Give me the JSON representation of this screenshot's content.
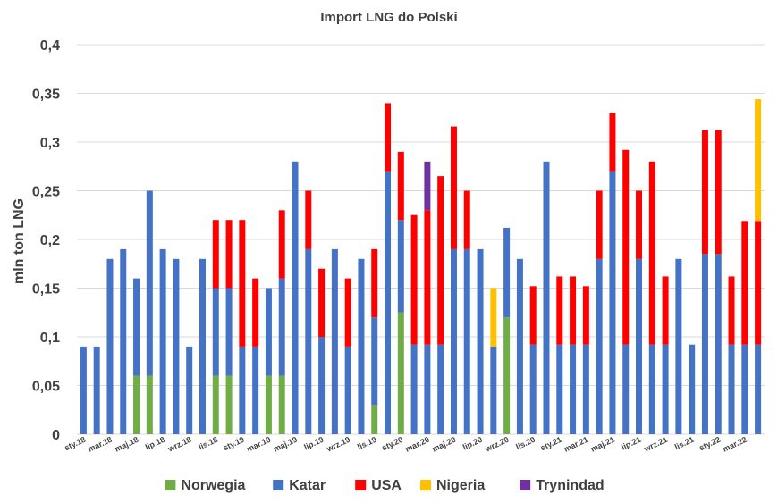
{
  "chart_data": {
    "type": "bar",
    "stacked": true,
    "title": "Import LNG do Polski",
    "ylabel": "mln ton LNG",
    "xlabel": "",
    "ylim": [
      0,
      0.4
    ],
    "yticks": [
      "0",
      "0,05",
      "0,1",
      "0,15",
      "0,2",
      "0,25",
      "0,3",
      "0,35",
      "0,4"
    ],
    "ytick_values": [
      0,
      0.05,
      0.1,
      0.15,
      0.2,
      0.25,
      0.3,
      0.35,
      0.4
    ],
    "grid": true,
    "legend_position": "bottom",
    "x_tick_labels": [
      {
        "index": 0,
        "label": "sty.18"
      },
      {
        "index": 2,
        "label": "mar.18"
      },
      {
        "index": 4,
        "label": "maj.18"
      },
      {
        "index": 6,
        "label": "lip.18"
      },
      {
        "index": 8,
        "label": "wrz.18"
      },
      {
        "index": 10,
        "label": "lis.18"
      },
      {
        "index": 12,
        "label": "sty.19"
      },
      {
        "index": 14,
        "label": "mar.19"
      },
      {
        "index": 16,
        "label": "maj.19"
      },
      {
        "index": 18,
        "label": "lip.19"
      },
      {
        "index": 20,
        "label": "wrz.19"
      },
      {
        "index": 22,
        "label": "lis.19"
      },
      {
        "index": 24,
        "label": "sty.20"
      },
      {
        "index": 26,
        "label": "mar.20"
      },
      {
        "index": 28,
        "label": "maj.20"
      },
      {
        "index": 30,
        "label": "lip.20"
      },
      {
        "index": 32,
        "label": "wrz.20"
      },
      {
        "index": 34,
        "label": "lis.20"
      },
      {
        "index": 36,
        "label": "sty.21"
      },
      {
        "index": 38,
        "label": "mar.21"
      },
      {
        "index": 40,
        "label": "maj.21"
      },
      {
        "index": 42,
        "label": "lip.21"
      },
      {
        "index": 44,
        "label": "wrz.21"
      },
      {
        "index": 46,
        "label": "lis.21"
      },
      {
        "index": 48,
        "label": "sty.22"
      },
      {
        "index": 50,
        "label": "mar.22"
      }
    ],
    "series": [
      {
        "name": "Norwegia",
        "color": "#70ad47",
        "values": [
          0,
          0,
          0,
          0,
          0.06,
          0.06,
          0,
          0,
          0,
          0,
          0.06,
          0.06,
          0,
          0,
          0.06,
          0.06,
          0,
          0,
          0,
          0,
          0,
          0,
          0.03,
          0,
          0.125,
          0,
          0,
          0,
          0,
          0,
          0,
          0,
          0.12,
          0,
          0,
          0,
          0,
          0,
          0,
          0,
          0,
          0,
          0,
          0,
          0,
          0,
          0,
          0,
          0,
          0,
          0,
          0
        ]
      },
      {
        "name": "Katar",
        "color": "#4472c4",
        "values": [
          0.09,
          0.09,
          0.18,
          0.19,
          0.1,
          0.19,
          0.19,
          0.18,
          0.09,
          0.18,
          0.09,
          0.09,
          0.09,
          0.09,
          0.09,
          0.1,
          0.28,
          0.19,
          0.1,
          0.19,
          0.09,
          0.18,
          0.09,
          0.27,
          0.095,
          0.092,
          0.092,
          0.092,
          0.19,
          0.19,
          0.19,
          0.09,
          0.092,
          0.18,
          0.092,
          0.28,
          0.092,
          0.092,
          0.092,
          0.18,
          0.27,
          0.092,
          0.18,
          0.092,
          0.092,
          0.18,
          0.092,
          0.185,
          0.185,
          0.092,
          0.092,
          0.092
        ]
      },
      {
        "name": "USA",
        "color": "#ff0000",
        "values": [
          0,
          0,
          0,
          0,
          0,
          0,
          0,
          0,
          0,
          0,
          0.07,
          0.07,
          0.13,
          0.07,
          0,
          0.07,
          0,
          0.06,
          0.07,
          0,
          0.07,
          0,
          0.07,
          0.07,
          0.07,
          0.133,
          0.138,
          0.173,
          0.126,
          0.06,
          0,
          0,
          0,
          0,
          0.06,
          0,
          0.07,
          0.07,
          0.06,
          0.07,
          0.06,
          0.2,
          0.07,
          0.188,
          0.07,
          0,
          0,
          0.127,
          0.127,
          0.07,
          0.127,
          0.127
        ]
      },
      {
        "name": "Nigeria",
        "color": "#ffc000",
        "values": [
          0,
          0,
          0,
          0,
          0,
          0,
          0,
          0,
          0,
          0,
          0,
          0,
          0,
          0,
          0,
          0,
          0,
          0,
          0,
          0,
          0,
          0,
          0,
          0,
          0,
          0,
          0,
          0,
          0,
          0,
          0,
          0.06,
          0,
          0,
          0,
          0,
          0,
          0,
          0,
          0,
          0,
          0,
          0,
          0,
          0,
          0,
          0,
          0,
          0,
          0,
          0,
          0.125
        ]
      },
      {
        "name": "Trynindad",
        "color": "#7030a0",
        "values": [
          0,
          0,
          0,
          0,
          0,
          0,
          0,
          0,
          0,
          0,
          0,
          0,
          0,
          0,
          0,
          0,
          0,
          0,
          0,
          0,
          0,
          0,
          0,
          0,
          0,
          0,
          0.05,
          0,
          0,
          0,
          0,
          0,
          0,
          0,
          0,
          0,
          0,
          0,
          0,
          0,
          0,
          0,
          0,
          0,
          0,
          0,
          0,
          0,
          0,
          0,
          0,
          0
        ]
      }
    ]
  }
}
